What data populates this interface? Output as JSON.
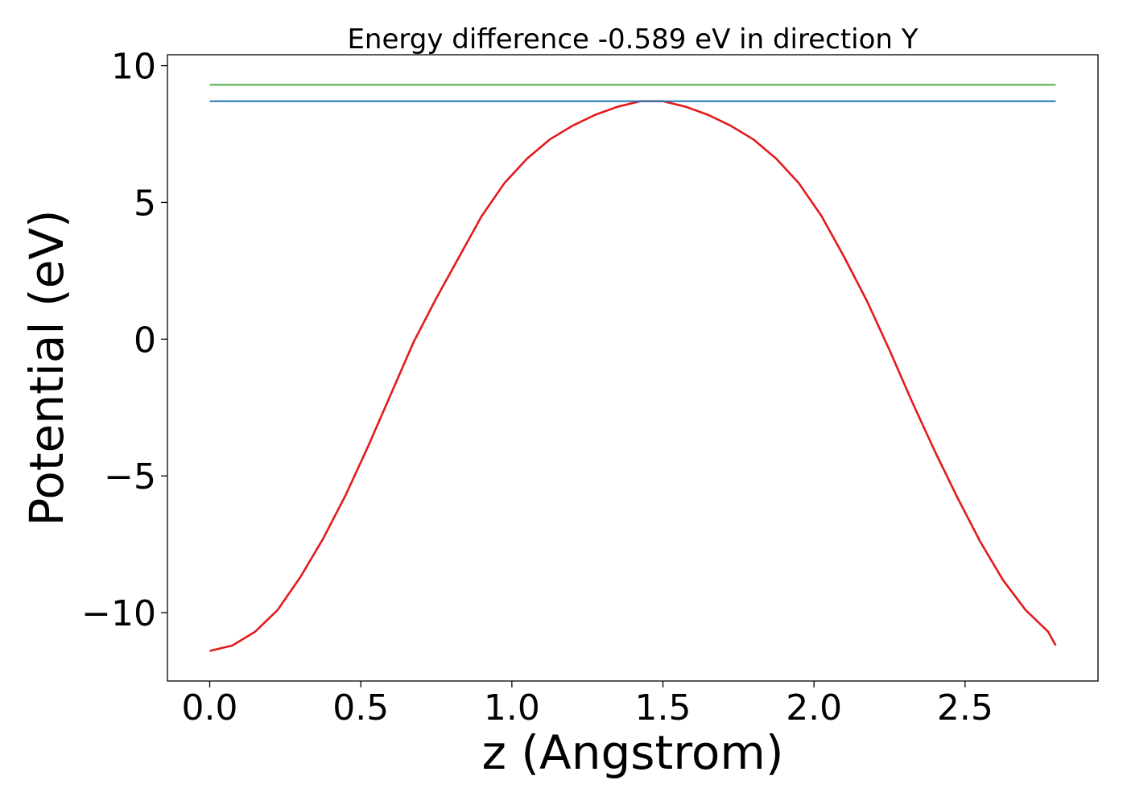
{
  "chart_data": {
    "type": "line",
    "title": "Energy difference -0.589 eV in direction Y",
    "xlabel": "z (Angstrom)",
    "ylabel": "Potential (eV)",
    "xlim": [
      -0.14,
      2.94
    ],
    "ylim": [
      -12.5,
      10.4
    ],
    "xticks": [
      0.0,
      0.5,
      1.0,
      1.5,
      2.0,
      2.5
    ],
    "xtick_labels": [
      "0.0",
      "0.5",
      "1.0",
      "1.5",
      "2.0",
      "2.5"
    ],
    "yticks": [
      -10,
      -5,
      0,
      5,
      10
    ],
    "ytick_labels": [
      "−10",
      "−5",
      "0",
      "5",
      "10"
    ],
    "grid": false,
    "series": [
      {
        "color": "#e41a1c",
        "x": [
          0.0,
          0.075,
          0.15,
          0.225,
          0.3,
          0.375,
          0.45,
          0.525,
          0.6,
          0.675,
          0.75,
          0.825,
          0.9,
          0.975,
          1.05,
          1.125,
          1.2,
          1.275,
          1.35,
          1.425,
          1.5,
          1.575,
          1.65,
          1.725,
          1.8,
          1.875,
          1.95,
          2.025,
          2.1,
          2.175,
          2.25,
          2.325,
          2.4,
          2.475,
          2.55,
          2.625,
          2.7,
          2.775
        ],
        "y": [
          -11.4,
          -11.2,
          -10.7,
          -9.9,
          -8.7,
          -7.3,
          -5.7,
          -3.9,
          -2.0,
          -0.1,
          1.5,
          3.0,
          4.5,
          5.7,
          6.6,
          7.3,
          7.8,
          8.2,
          8.5,
          8.7,
          8.7,
          8.5,
          8.2,
          7.8,
          7.3,
          6.6,
          5.7,
          4.5,
          3.0,
          1.4,
          -0.4,
          -2.3,
          -4.1,
          -5.8,
          -7.4,
          -8.8,
          -9.9,
          -10.7
        ],
        "x_end": 2.8,
        "y_end": -11.2
      },
      {
        "color": "#1f77b4",
        "x": [
          0.0,
          2.8
        ],
        "y": [
          8.7,
          8.7
        ]
      },
      {
        "color": "#4daf4a",
        "x": [
          0.0,
          2.8
        ],
        "y": [
          9.3,
          9.3
        ]
      }
    ]
  }
}
